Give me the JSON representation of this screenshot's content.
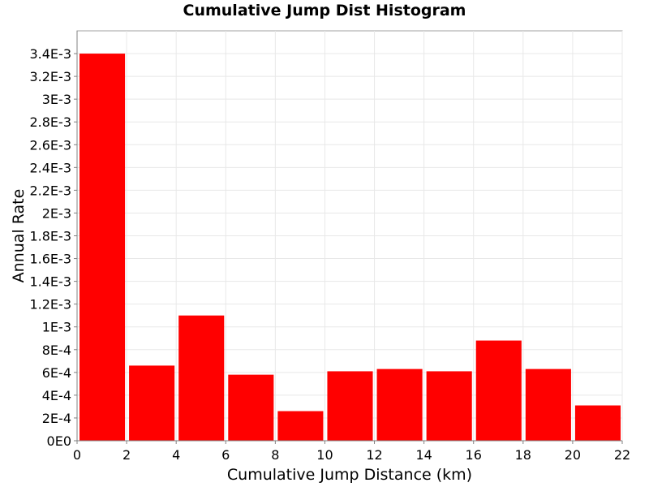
{
  "chart_data": {
    "type": "bar",
    "title": "Cumulative Jump Dist Histogram",
    "xlabel": "Cumulative Jump Distance (km)",
    "ylabel": "Annual Rate",
    "xlim": [
      0,
      22
    ],
    "ylim": [
      0,
      0.0036
    ],
    "grid": true,
    "bar_color": "#ff0000",
    "bins": [
      {
        "x0": 0,
        "x1": 2,
        "value": 0.0034
      },
      {
        "x0": 2,
        "x1": 4,
        "value": 0.00066
      },
      {
        "x0": 4,
        "x1": 6,
        "value": 0.0011
      },
      {
        "x0": 6,
        "x1": 8,
        "value": 0.00058
      },
      {
        "x0": 8,
        "x1": 10,
        "value": 0.00026
      },
      {
        "x0": 10,
        "x1": 12,
        "value": 0.00061
      },
      {
        "x0": 12,
        "x1": 14,
        "value": 0.00063
      },
      {
        "x0": 14,
        "x1": 16,
        "value": 0.00061
      },
      {
        "x0": 16,
        "x1": 18,
        "value": 0.00088
      },
      {
        "x0": 18,
        "x1": 20,
        "value": 0.00063
      },
      {
        "x0": 20,
        "x1": 22,
        "value": 0.00031
      }
    ],
    "x_ticks": [
      {
        "value": 0,
        "label": "0"
      },
      {
        "value": 2,
        "label": "2"
      },
      {
        "value": 4,
        "label": "4"
      },
      {
        "value": 6,
        "label": "6"
      },
      {
        "value": 8,
        "label": "8"
      },
      {
        "value": 10,
        "label": "10"
      },
      {
        "value": 12,
        "label": "12"
      },
      {
        "value": 14,
        "label": "14"
      },
      {
        "value": 16,
        "label": "16"
      },
      {
        "value": 18,
        "label": "18"
      },
      {
        "value": 20,
        "label": "20"
      },
      {
        "value": 22,
        "label": "22"
      }
    ],
    "y_ticks": [
      {
        "value": 0,
        "label": "0E0"
      },
      {
        "value": 0.0002,
        "label": "2E-4"
      },
      {
        "value": 0.0004,
        "label": "4E-4"
      },
      {
        "value": 0.0006,
        "label": "6E-4"
      },
      {
        "value": 0.0008,
        "label": "8E-4"
      },
      {
        "value": 0.001,
        "label": "1E-3"
      },
      {
        "value": 0.0012,
        "label": "1.2E-3"
      },
      {
        "value": 0.0014,
        "label": "1.4E-3"
      },
      {
        "value": 0.0016,
        "label": "1.6E-3"
      },
      {
        "value": 0.0018,
        "label": "1.8E-3"
      },
      {
        "value": 0.002,
        "label": "2E-3"
      },
      {
        "value": 0.0022,
        "label": "2.2E-3"
      },
      {
        "value": 0.0024,
        "label": "2.4E-3"
      },
      {
        "value": 0.0026,
        "label": "2.6E-3"
      },
      {
        "value": 0.0028,
        "label": "2.8E-3"
      },
      {
        "value": 0.003,
        "label": "3E-3"
      },
      {
        "value": 0.0032,
        "label": "3.2E-3"
      },
      {
        "value": 0.0034,
        "label": "3.4E-3"
      }
    ]
  }
}
